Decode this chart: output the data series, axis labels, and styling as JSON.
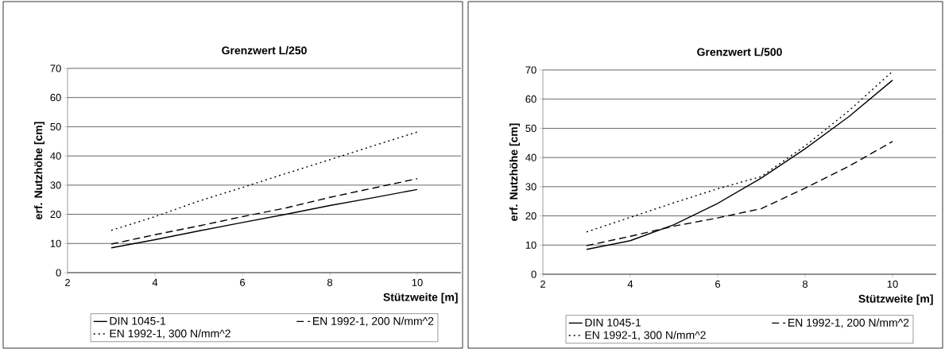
{
  "chart_data": [
    {
      "type": "line",
      "title": "Grenzwert L/250",
      "xlabel": "Stützweite [m]",
      "ylabel": "erf. Nutzhöhe [cm]",
      "x": [
        3,
        4,
        5,
        6,
        7,
        8,
        9,
        10
      ],
      "series": [
        {
          "name": "DIN 1045-1",
          "color": "#000000",
          "line_style": "solid",
          "values": [
            8.5,
            11.3,
            14.3,
            17.2,
            20,
            23,
            25.7,
            28.5
          ]
        },
        {
          "name": "EN 1992-1, 200 N/mm^2",
          "color": "#000000",
          "line_style": "dashed",
          "values": [
            9.8,
            13,
            16,
            19.2,
            22.2,
            25.8,
            29,
            32.2
          ]
        },
        {
          "name": "EN 1992-1, 300 N/mm^2",
          "color": "#000000",
          "line_style": "dotted",
          "values": [
            14.5,
            19.2,
            24.5,
            29.2,
            34,
            38.7,
            43.5,
            48.2
          ]
        }
      ],
      "xlim": [
        2,
        11
      ],
      "ylim": [
        0,
        70
      ],
      "xticks": [
        2,
        4,
        6,
        8,
        10
      ],
      "yticks": [
        0,
        10,
        20,
        30,
        40,
        50,
        60,
        70
      ],
      "grid": "y",
      "legend": "bottom",
      "marker": "none"
    },
    {
      "type": "line",
      "title": "Grenzwert L/500",
      "xlabel": "Stützweite [m]",
      "ylabel": "erf. Nutzhöhe [cm]",
      "x": [
        3,
        4,
        5,
        6,
        7,
        8,
        9,
        10
      ],
      "series": [
        {
          "name": "DIN 1045-1",
          "color": "#000000",
          "line_style": "solid",
          "values": [
            8.5,
            11.5,
            17,
            24.3,
            33,
            43,
            54,
            66.5
          ]
        },
        {
          "name": "EN 1992-1, 200 N/mm^2",
          "color": "#000000",
          "line_style": "dashed",
          "values": [
            9.8,
            13,
            16.5,
            19.3,
            22.5,
            29.5,
            37,
            45.5
          ]
        },
        {
          "name": "EN 1992-1, 300 N/mm^2",
          "color": "#000000",
          "line_style": "dotted",
          "values": [
            14.5,
            19.5,
            24.5,
            29.3,
            33.5,
            44,
            56,
            69.5
          ]
        }
      ],
      "xlim": [
        2,
        11
      ],
      "ylim": [
        0,
        70
      ],
      "xticks": [
        2,
        4,
        6,
        8,
        10
      ],
      "yticks": [
        0,
        10,
        20,
        30,
        40,
        50,
        60,
        70
      ],
      "grid": "y",
      "legend": "bottom",
      "marker": "none"
    }
  ]
}
